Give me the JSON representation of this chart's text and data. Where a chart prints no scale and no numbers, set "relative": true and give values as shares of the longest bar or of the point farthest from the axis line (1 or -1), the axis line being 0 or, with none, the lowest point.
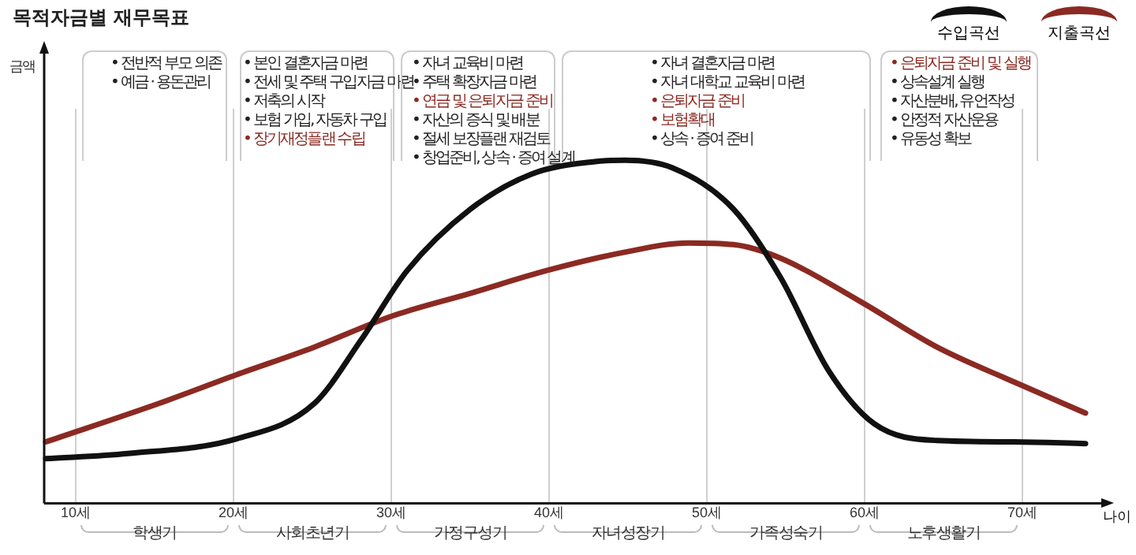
{
  "chart_data": {
    "type": "line",
    "title": "목적자금별 재무목표",
    "xlabel": "나이",
    "relative": true,
    "xlim": [
      8,
      75
    ],
    "xticks": [
      {
        "value": 10,
        "label": "10세"
      },
      {
        "value": 20,
        "label": "20세"
      },
      {
        "value": 30,
        "label": "30세"
      },
      {
        "value": 40,
        "label": "40세"
      },
      {
        "value": 50,
        "label": "50세"
      },
      {
        "value": 60,
        "label": "60세"
      },
      {
        "value": 70,
        "label": "70세"
      }
    ],
    "series": [
      {
        "name": "수입곡선",
        "color": "#111111",
        "x": [
          8.1,
          13.3,
          20.2,
          25.1,
          28.1,
          31.0,
          35.0,
          38.9,
          42.9,
          44.8,
          47.8,
          51.7,
          54.7,
          57.7,
          60.6,
          64.6,
          69.5,
          74.0
        ],
        "values": [
          0.13,
          0.145,
          0.188,
          0.29,
          0.477,
          0.678,
          0.857,
          0.96,
          0.996,
          1,
          0.978,
          0.857,
          0.656,
          0.388,
          0.232,
          0.183,
          0.179,
          0.174
        ]
      },
      {
        "name": "지출곡선",
        "color": "#8b2a22",
        "x": [
          8.1,
          15.2,
          20.2,
          25.1,
          30.0,
          35.0,
          39.9,
          44.8,
          48.8,
          51.7,
          54.7,
          59.7,
          64.6,
          69.5,
          74.0
        ],
        "values": [
          0.179,
          0.29,
          0.375,
          0.455,
          0.545,
          0.612,
          0.679,
          0.732,
          0.759,
          0.754,
          0.714,
          0.589,
          0.455,
          0.353,
          0.263
        ]
      }
    ],
    "annotations": [
      "• 전반적 부모 의존",
      "• 예금 · 용돈관리",
      "• 본인 결혼자금 마련",
      "• 전세 및 주택 구입자금 마련",
      "• 저축의 시작",
      "• 보험 가입, 자동차 구입",
      "• 장기재정플랜 수립",
      "• 자녀 교육비 마련",
      "• 주택 확장자금 마련",
      "• 연금 및 은퇴자금 준비",
      "• 자산의 증식 및 배분",
      "• 절세 보장플랜 재검토",
      "• 창업준비, 상속 · 증여 설계",
      "• 자녀 결혼자금 마련",
      "• 자녀 대학교 교육비 마련",
      "• 은퇴자금 준비",
      "• 보험확대",
      "• 상속 · 증여 준비",
      "• 은퇴자금 준비 및 실행",
      "• 상속설계 실행",
      "• 자산분배, 유언작성",
      "• 안정적 자산운용",
      "• 유동성 확보",
      "학생기",
      "사회초년기",
      "가정구성기",
      "자녀성장기",
      "가족성숙기",
      "노후생활기",
      "금액"
    ],
    "grid": "x",
    "legend": "top right",
    "marker": "none",
    "line_style": "solid"
  }
}
